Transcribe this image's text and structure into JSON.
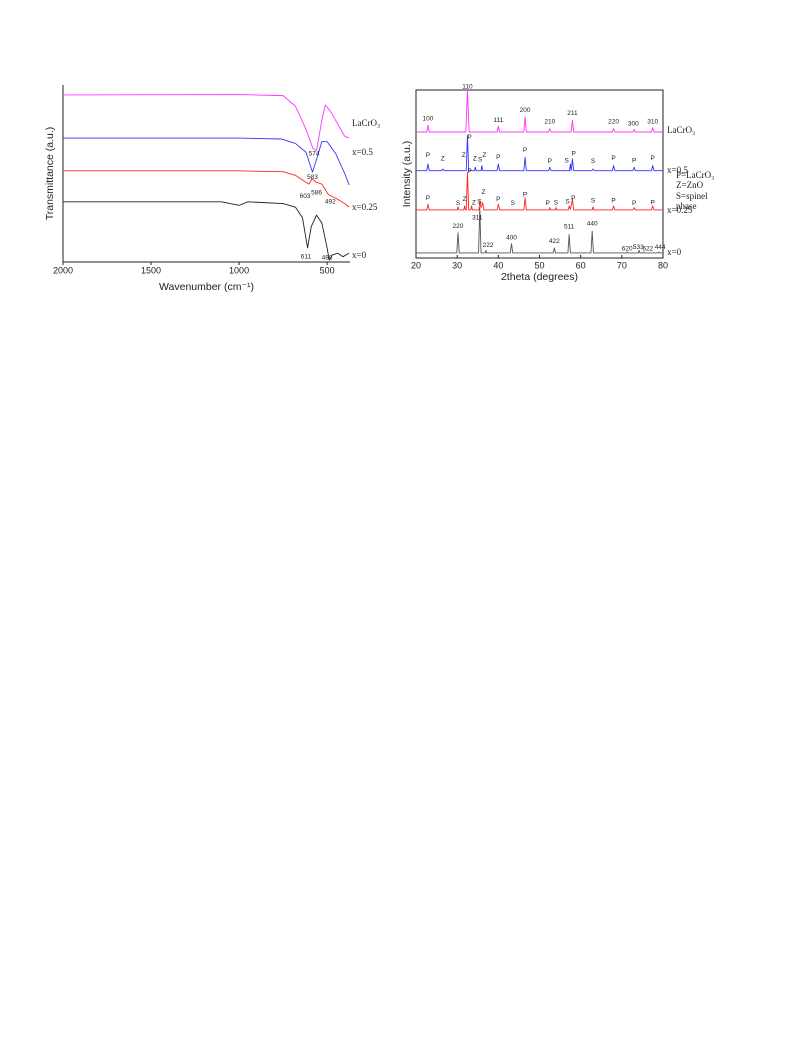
{
  "chart_data": [
    {
      "type": "line",
      "xlabel": "Wavenumber (cm⁻¹)",
      "ylabel": "Transmittance (a.u.)",
      "xlim": [
        2000,
        370
      ],
      "ylim": [
        0,
        100
      ],
      "xticks": [
        2000,
        1500,
        1000,
        500
      ],
      "series": [
        {
          "name": "LaCrO₃",
          "color": "#ff33ff",
          "x": [
            2000,
            1000,
            750,
            680,
            620,
            580,
            560,
            530,
            510,
            480,
            440,
            400,
            375
          ],
          "values": [
            94.4,
            94.6,
            94,
            88,
            75,
            64,
            63,
            80,
            88.7,
            85,
            78,
            71,
            70
          ]
        },
        {
          "name": "x=0.5",
          "color": "#3333ff",
          "x": [
            2000,
            1000,
            760,
            680,
            620,
            583,
            560,
            530,
            500,
            450,
            400,
            375
          ],
          "values": [
            70,
            70,
            69.5,
            67,
            62,
            50.8,
            58,
            68,
            68,
            61,
            50,
            43.5
          ]
        },
        {
          "name": "x=0.25",
          "color": "#ff2222",
          "x": [
            2000,
            1000,
            750,
            680,
            620,
            603,
            586,
            560,
            530,
            492,
            450,
            400,
            375
          ],
          "values": [
            51.5,
            51.5,
            51,
            49,
            45,
            44,
            47,
            45,
            44,
            38,
            36,
            33,
            31
          ]
        },
        {
          "name": "x=0",
          "color": "#222222",
          "x": [
            2000,
            1100,
            1000,
            950,
            750,
            680,
            640,
            611,
            590,
            560,
            530,
            500,
            488,
            470,
            440,
            410,
            375
          ],
          "values": [
            34,
            34,
            32,
            34,
            33,
            31,
            25,
            8,
            20,
            26.5,
            22,
            8,
            1,
            4,
            5,
            3,
            5
          ]
        }
      ],
      "annotations": [
        {
          "text": "574",
          "x": 574,
          "y": 61
        },
        {
          "text": "583",
          "x": 583,
          "y": 48
        },
        {
          "text": "603",
          "x": 625,
          "y": 37
        },
        {
          "text": "586",
          "x": 560,
          "y": 39
        },
        {
          "text": "492",
          "x": 482,
          "y": 34
        },
        {
          "text": "611",
          "x": 620,
          "y": 3
        },
        {
          "text": "488",
          "x": 500,
          "y": 2.5
        }
      ]
    },
    {
      "type": "line",
      "xlabel": "2theta (degrees)",
      "ylabel": "Intensity (a.u.)",
      "xlim": [
        20,
        80
      ],
      "ylim": [
        0,
        100
      ],
      "xticks": [
        20,
        30,
        40,
        50,
        60,
        70,
        80
      ],
      "series": [
        {
          "name": "LaCrO₃",
          "color": "#ff33ff",
          "x": [
            20,
            22.6,
            22.9,
            23.2,
            32.1,
            32.5,
            32.9,
            39.7,
            40,
            40.3,
            46.2,
            46.5,
            46.8,
            52.2,
            52.5,
            52.8,
            57.7,
            58,
            58.3,
            67.7,
            68,
            68.3,
            72.7,
            73,
            73.3,
            77.2,
            77.5,
            77.8,
            80
          ],
          "values": [
            75,
            75,
            79,
            75,
            75,
            100,
            75,
            75,
            78.5,
            75,
            75,
            84,
            75,
            75,
            77,
            75,
            75,
            82,
            75,
            75,
            77,
            75,
            75,
            76.5,
            75,
            75,
            77.5,
            75,
            75
          ]
        },
        {
          "name": "x=0.5",
          "color": "#3333ff",
          "x": [
            20,
            22.6,
            22.9,
            23.2,
            26.2,
            26.5,
            26.8,
            32.2,
            32.5,
            32.8,
            34.2,
            34.4,
            34.6,
            35.8,
            36,
            36.2,
            39.7,
            40,
            40.3,
            46.2,
            46.5,
            46.8,
            52.2,
            52.5,
            52.8,
            57.3,
            57.5,
            57.7,
            58,
            58.3,
            62.7,
            63,
            63.3,
            67.7,
            68,
            68.3,
            72.7,
            73,
            73.3,
            77.2,
            77.5,
            77.8,
            80
          ],
          "values": [
            52,
            52,
            56,
            52,
            52,
            53,
            52,
            52,
            73,
            52,
            52,
            54,
            52,
            52,
            55,
            52,
            52,
            56,
            52,
            52,
            60,
            52,
            52,
            54,
            52,
            52,
            56,
            52,
            59,
            52,
            52,
            53,
            52,
            52,
            55,
            52,
            52,
            54,
            52,
            52,
            55,
            52,
            52
          ]
        },
        {
          "name": "x=0.25",
          "color": "#ff2222",
          "x": [
            20,
            22.6,
            22.9,
            23.2,
            30,
            30.2,
            30.4,
            31.6,
            31.8,
            32,
            32.2,
            32.5,
            32.8,
            33.3,
            33.5,
            33.7,
            35.3,
            35.5,
            35.8,
            36.2,
            36.5,
            39.7,
            40,
            40.3,
            46.2,
            46.5,
            46.8,
            52.3,
            52.5,
            52.7,
            53.8,
            54,
            54.2,
            57,
            57.2,
            57.5,
            58,
            58.3,
            62.8,
            63,
            63.2,
            67.7,
            68,
            68.3,
            72.7,
            73,
            73.3,
            77.2,
            77.5,
            77.8,
            80
          ],
          "values": [
            28.6,
            28.6,
            32,
            28.6,
            28.6,
            30.5,
            28.6,
            28.6,
            31,
            28.6,
            28.6,
            51,
            28.6,
            28.6,
            31,
            28.6,
            28.6,
            34,
            30,
            33,
            28.6,
            28.6,
            32,
            28.6,
            28.6,
            36,
            28.6,
            28.6,
            30,
            28.6,
            28.6,
            30,
            28.6,
            28.6,
            31,
            29,
            35,
            28.6,
            28.6,
            30.5,
            28.6,
            28.6,
            31,
            28.6,
            28.6,
            30,
            28.6,
            28.6,
            31,
            28.6,
            28.6
          ]
        },
        {
          "name": "x=0",
          "color": "#555555",
          "x": [
            20,
            29.9,
            30.2,
            30.5,
            35.2,
            35.5,
            35.8,
            36.8,
            37,
            37.2,
            42.9,
            43.2,
            43.5,
            53.3,
            53.6,
            53.9,
            56.9,
            57.2,
            57.5,
            62.5,
            62.8,
            63.1,
            71.1,
            71.3,
            71.5,
            74,
            74.2,
            74.4,
            75.1,
            75.3,
            75.5,
            78.8,
            79,
            79.2,
            80
          ],
          "values": [
            3,
            3,
            15,
            3,
            3,
            29.8,
            3,
            3,
            4.5,
            3,
            3,
            8.5,
            3,
            3,
            6,
            3,
            3,
            14,
            3,
            3,
            16,
            3,
            3,
            3.6,
            3,
            3,
            4.5,
            3,
            3,
            3.5,
            3,
            3,
            3.5,
            3,
            3
          ]
        }
      ],
      "annotations": [
        {
          "text": "100",
          "x": 22.9,
          "y": 83,
          "color": "#ff33ff"
        },
        {
          "text": "110",
          "x": 32.5,
          "y": 102,
          "color": "#ff33ff"
        },
        {
          "text": "111",
          "x": 40,
          "y": 82,
          "color": "#ff33ff"
        },
        {
          "text": "200",
          "x": 46.5,
          "y": 88,
          "color": "#ff33ff"
        },
        {
          "text": "210",
          "x": 52.5,
          "y": 81,
          "color": "#ff33ff"
        },
        {
          "text": "211",
          "x": 58,
          "y": 86,
          "color": "#ff33ff"
        },
        {
          "text": "220",
          "x": 68,
          "y": 81,
          "color": "#ff33ff"
        },
        {
          "text": "300",
          "x": 72.8,
          "y": 80,
          "color": "#ff33ff"
        },
        {
          "text": "310",
          "x": 77.5,
          "y": 81,
          "color": "#ff33ff"
        },
        {
          "text": "P",
          "x": 22.9,
          "y": 61,
          "color": "#ff33ff"
        },
        {
          "text": "Z",
          "x": 26.5,
          "y": 59,
          "color": "#22aa22"
        },
        {
          "text": "Z",
          "x": 31.6,
          "y": 61,
          "color": "#22aa22"
        },
        {
          "text": "P",
          "x": 33,
          "y": 72,
          "color": "#ff33ff"
        },
        {
          "text": "Z",
          "x": 34.3,
          "y": 59,
          "color": "#22aa22"
        },
        {
          "text": "S",
          "x": 35.6,
          "y": 58.5,
          "color": "#222222"
        },
        {
          "text": "Z",
          "x": 36.6,
          "y": 61,
          "color": "#22aa22"
        },
        {
          "text": "P",
          "x": 40,
          "y": 60,
          "color": "#ff33ff"
        },
        {
          "text": "P",
          "x": 46.5,
          "y": 64,
          "color": "#ff33ff"
        },
        {
          "text": "P",
          "x": 52.5,
          "y": 57.5,
          "color": "#ff33ff"
        },
        {
          "text": "S",
          "x": 56.6,
          "y": 58,
          "color": "#222222"
        },
        {
          "text": "P",
          "x": 58.3,
          "y": 62,
          "color": "#ff33ff"
        },
        {
          "text": "S",
          "x": 63,
          "y": 57.5,
          "color": "#222222"
        },
        {
          "text": "P",
          "x": 68,
          "y": 59.5,
          "color": "#ff33ff"
        },
        {
          "text": "P",
          "x": 73,
          "y": 58,
          "color": "#ff33ff"
        },
        {
          "text": "P",
          "x": 77.5,
          "y": 59.5,
          "color": "#ff33ff"
        },
        {
          "text": "P",
          "x": 22.9,
          "y": 35.5,
          "color": "#ff33ff"
        },
        {
          "text": "S",
          "x": 30.2,
          "y": 32.5,
          "color": "#222222"
        },
        {
          "text": "Z",
          "x": 31.8,
          "y": 35,
          "color": "#22aa22"
        },
        {
          "text": "P",
          "x": 33,
          "y": 51.5,
          "color": "#ff33ff"
        },
        {
          "text": "Z",
          "x": 34.1,
          "y": 33,
          "color": "#22aa22"
        },
        {
          "text": "S",
          "x": 35.4,
          "y": 33.5,
          "color": "#222222"
        },
        {
          "text": "Z",
          "x": 36.4,
          "y": 39,
          "color": "#22aa22"
        },
        {
          "text": "P",
          "x": 40,
          "y": 35,
          "color": "#ff33ff"
        },
        {
          "text": "S",
          "x": 43.5,
          "y": 32.5,
          "color": "#222222"
        },
        {
          "text": "P",
          "x": 46.5,
          "y": 37.5,
          "color": "#ff33ff"
        },
        {
          "text": "P",
          "x": 52,
          "y": 32.5,
          "color": "#ff33ff"
        },
        {
          "text": "S",
          "x": 54,
          "y": 33,
          "color": "#222222"
        },
        {
          "text": "S",
          "x": 56.8,
          "y": 33.5,
          "color": "#222222"
        },
        {
          "text": "P",
          "x": 58.2,
          "y": 35.5,
          "color": "#ff33ff"
        },
        {
          "text": "S",
          "x": 63,
          "y": 34,
          "color": "#222222"
        },
        {
          "text": "P",
          "x": 68,
          "y": 34,
          "color": "#ff33ff"
        },
        {
          "text": "P",
          "x": 73,
          "y": 32.5,
          "color": "#ff33ff"
        },
        {
          "text": "P",
          "x": 77.5,
          "y": 33,
          "color": "#ff33ff"
        },
        {
          "text": "220",
          "x": 30.2,
          "y": 19,
          "color": "#222222"
        },
        {
          "text": "311",
          "x": 34.9,
          "y": 24,
          "color": "#222222"
        },
        {
          "text": "222",
          "x": 37.5,
          "y": 7.5,
          "color": "#222222"
        },
        {
          "text": "400",
          "x": 43.2,
          "y": 12,
          "color": "#222222"
        },
        {
          "text": "422",
          "x": 53.6,
          "y": 10,
          "color": "#222222"
        },
        {
          "text": "511",
          "x": 57.2,
          "y": 18.5,
          "color": "#222222"
        },
        {
          "text": "440",
          "x": 62.8,
          "y": 20.5,
          "color": "#222222"
        },
        {
          "text": "620",
          "x": 71.3,
          "y": 5.5,
          "color": "#222222"
        },
        {
          "text": "533",
          "x": 74,
          "y": 6.5,
          "color": "#222222"
        },
        {
          "text": "622",
          "x": 76.3,
          "y": 5.5,
          "color": "#222222"
        },
        {
          "text": "444",
          "x": 79.3,
          "y": 6.5,
          "color": "#222222"
        }
      ],
      "key": [
        {
          "text": "P=LaCrO₃",
          "color": "#ff33ff"
        },
        {
          "text": "Z=ZnO",
          "color": "#22aa22"
        },
        {
          "text": "S=spinel",
          "color": "#222222"
        },
        {
          "text": "phase",
          "color": "#222222"
        }
      ]
    }
  ]
}
